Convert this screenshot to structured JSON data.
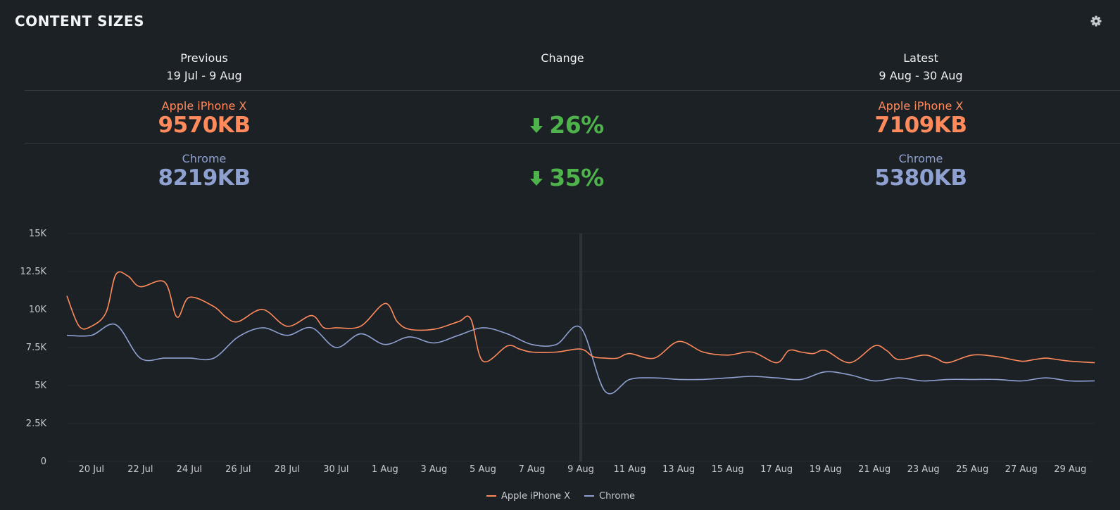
{
  "header": {
    "title": "CONTENT SIZES",
    "settings_icon": "gear-icon"
  },
  "columns": {
    "previous": {
      "heading": "Previous",
      "range": "19 Jul - 9 Aug"
    },
    "change": {
      "heading": "Change"
    },
    "latest": {
      "heading": "Latest",
      "range": "9 Aug - 30 Aug"
    }
  },
  "metrics": [
    {
      "device": "Apple iPhone X",
      "previous": "9570KB",
      "change": "26%",
      "direction": "down",
      "latest": "7109KB",
      "color": "#ff8a5c"
    },
    {
      "device": "Chrome",
      "previous": "8219KB",
      "change": "35%",
      "direction": "down",
      "latest": "5380KB",
      "color": "#8fa1d1"
    }
  ],
  "colors": {
    "background": "#1c2126",
    "decrease": "#4db34a",
    "marker": "#2e3338",
    "grid": "#262c32"
  },
  "chart_data": {
    "type": "line",
    "ylim": [
      0,
      15000
    ],
    "yticks": [
      0,
      2500,
      5000,
      7500,
      10000,
      12500,
      15000
    ],
    "ytick_labels": [
      "0",
      "2.5K",
      "5K",
      "7.5K",
      "10K",
      "12.5K",
      "15K"
    ],
    "xlim": [
      0,
      42
    ],
    "xticks": [
      1,
      3,
      5,
      7,
      9,
      11,
      13,
      15,
      17,
      19,
      21,
      23,
      25,
      27,
      29,
      31,
      33,
      35,
      37,
      39,
      41
    ],
    "xtick_labels": [
      "20 Jul",
      "22 Jul",
      "24 Jul",
      "26 Jul",
      "28 Jul",
      "30 Jul",
      "1 Aug",
      "3 Aug",
      "5 Aug",
      "7 Aug",
      "9 Aug",
      "11 Aug",
      "13 Aug",
      "15 Aug",
      "17 Aug",
      "19 Aug",
      "21 Aug",
      "23 Aug",
      "25 Aug",
      "27 Aug",
      "29 Aug"
    ],
    "marker_x": 21,
    "series": [
      {
        "name": "Apple iPhone X",
        "color": "#ff8a5c",
        "x": [
          0,
          0.5,
          1,
          1.6,
          2,
          2.5,
          3,
          4,
          4.5,
          5,
          6,
          6.5,
          7,
          8,
          9,
          10,
          10.5,
          11,
          12,
          13,
          13.5,
          14,
          15,
          16,
          16.5,
          17,
          18,
          18.5,
          19,
          20,
          21,
          21.5,
          22,
          22.5,
          23,
          24,
          25,
          26,
          27,
          28,
          29,
          29.5,
          30,
          30.5,
          31,
          32,
          33,
          33.5,
          34,
          35,
          35.5,
          36,
          37,
          38,
          39,
          39.5,
          40,
          40.5,
          41,
          42
        ],
        "y": [
          10900,
          8900,
          8900,
          9800,
          12300,
          12200,
          11500,
          11800,
          9500,
          10800,
          10200,
          9500,
          9200,
          10000,
          8900,
          9600,
          8800,
          8800,
          8900,
          10400,
          9200,
          8700,
          8700,
          9200,
          9400,
          6600,
          7600,
          7400,
          7200,
          7200,
          7400,
          6900,
          6800,
          6800,
          7100,
          6800,
          7900,
          7200,
          7000,
          7200,
          6500,
          7300,
          7200,
          7100,
          7300,
          6500,
          7600,
          7300,
          6700,
          7000,
          6800,
          6500,
          7000,
          6900,
          6600,
          6700,
          6800,
          6700,
          6600,
          6500
        ]
      },
      {
        "name": "Chrome",
        "color": "#8fa1d1",
        "x": [
          0,
          1,
          2,
          3,
          4,
          5,
          6,
          7,
          8,
          9,
          10,
          11,
          12,
          13,
          14,
          15,
          16,
          17,
          18,
          19,
          20,
          21,
          22,
          23,
          24,
          25,
          26,
          27,
          28,
          29,
          30,
          31,
          32,
          33,
          34,
          35,
          36,
          37,
          38,
          39,
          40,
          41,
          42
        ],
        "y": [
          8300,
          8300,
          9000,
          6800,
          6800,
          6800,
          6800,
          8200,
          8800,
          8300,
          8800,
          7500,
          8400,
          7700,
          8200,
          7800,
          8300,
          8800,
          8400,
          7700,
          7700,
          8800,
          4600,
          5400,
          5500,
          5400,
          5400,
          5500,
          5600,
          5500,
          5400,
          5900,
          5700,
          5300,
          5500,
          5300,
          5400,
          5400,
          5400,
          5300,
          5500,
          5300,
          5300
        ]
      }
    ],
    "legend": "bottom-center"
  }
}
